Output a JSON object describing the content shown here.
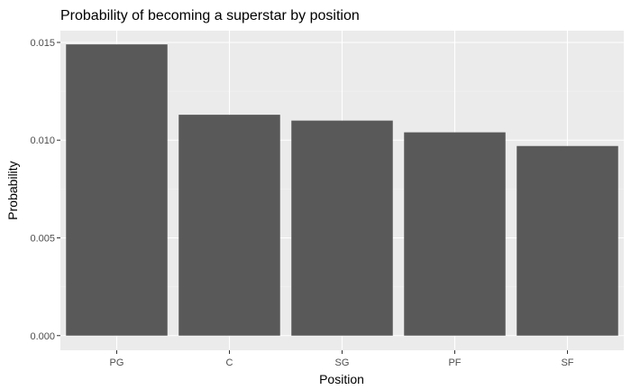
{
  "chart_data": {
    "type": "bar",
    "title": "Probability of becoming a superstar by position",
    "xlabel": "Position",
    "ylabel": "Probability",
    "categories": [
      "PG",
      "C",
      "SG",
      "PF",
      "SF"
    ],
    "values": [
      0.0149,
      0.0113,
      0.011,
      0.0104,
      0.0097
    ],
    "ylim": [
      -0.00075,
      0.0156
    ],
    "yticks": [
      0.0,
      0.005,
      0.01,
      0.015
    ],
    "ytick_labels": [
      "0.000",
      "0.005",
      "0.010",
      "0.015"
    ],
    "grid": true,
    "legend": "none",
    "colors": {
      "bar": "#595959",
      "panel": "#ebebeb",
      "grid_major": "#ffffff",
      "grid_minor": "#f5f5f5",
      "tick": "#333333"
    }
  }
}
